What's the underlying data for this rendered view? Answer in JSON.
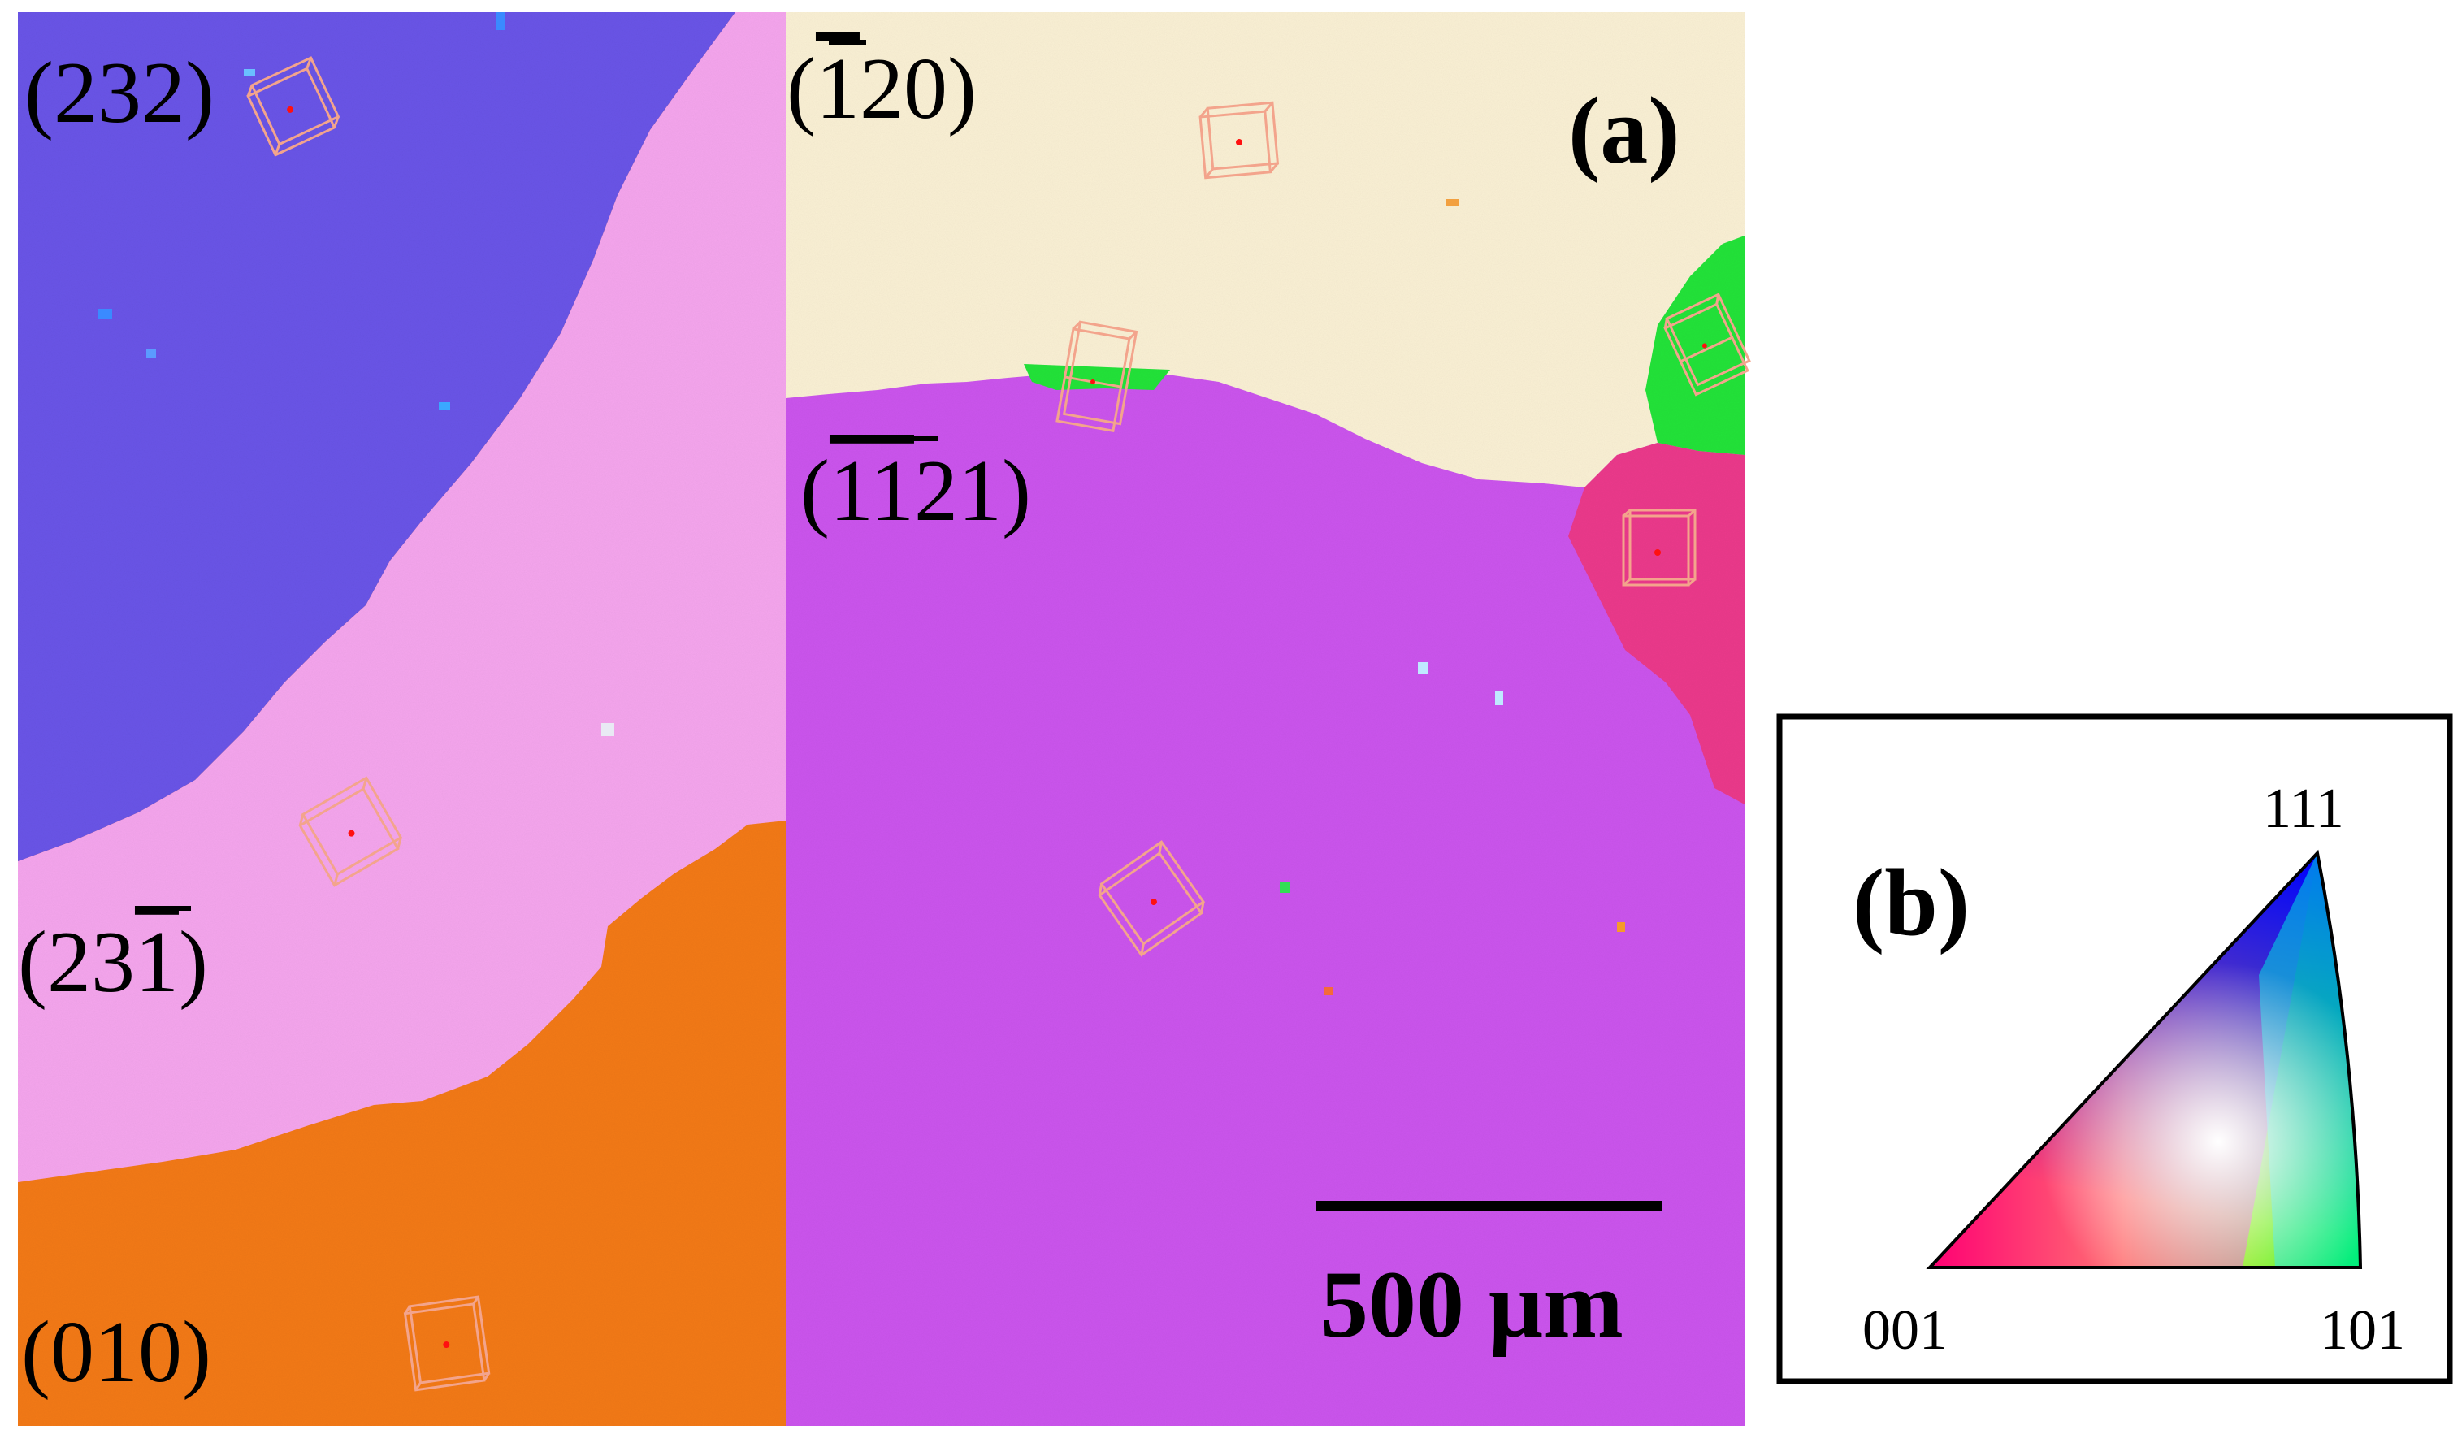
{
  "panel_a": {
    "panel_label": "(a)",
    "scale_bar_text": "500 µm",
    "grains": [
      {
        "label_pre": "(232)",
        "label_over": "",
        "label_post": "",
        "color": "#6a55e8"
      },
      {
        "label_pre": "(",
        "label_over": "1",
        "label_post": "20)",
        "color": "#fbf1d5"
      },
      {
        "label_pre": "(",
        "label_over": "11",
        "label_post": "21)",
        "color": "#cc55ee"
      },
      {
        "label_pre": "(23",
        "label_over": "1",
        "label_post": ")",
        "color": "#f6a6ee"
      },
      {
        "label_pre": "(010)",
        "label_over": "",
        "label_post": "",
        "color": "#f47a18"
      }
    ],
    "minor_grain_colors": {
      "green": "#22e43a",
      "red": "#ec3a8c"
    }
  },
  "panel_b": {
    "panel_label": "(b)",
    "corners": {
      "top": "111",
      "left": "001",
      "right": "101"
    },
    "colors": {
      "001": "#ff0000",
      "101": "#00ff00",
      "111": "#0000ff"
    }
  }
}
